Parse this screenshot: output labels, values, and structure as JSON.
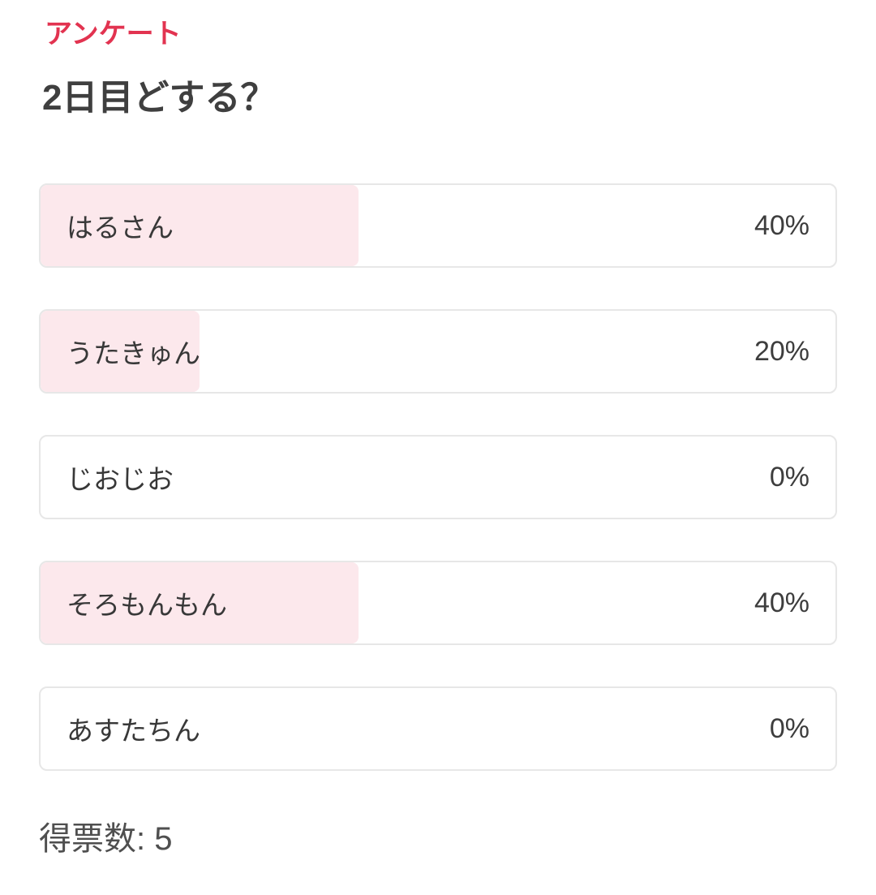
{
  "header": {
    "kicker": "アンケート",
    "kicker_color": "#e23350",
    "question": "2日目どする？"
  },
  "poll": {
    "options": [
      {
        "label": "はるさん",
        "percent": 40,
        "percent_label": "40%"
      },
      {
        "label": "うたきゅん",
        "percent": 20,
        "percent_label": "20%"
      },
      {
        "label": "じおじお",
        "percent": 0,
        "percent_label": "0%"
      },
      {
        "label": "そろもんもん",
        "percent": 40,
        "percent_label": "40%"
      },
      {
        "label": "あすたちん",
        "percent": 0,
        "percent_label": "0%"
      }
    ],
    "bar_fill_color": "#fce8ec",
    "bar_border_color": "#e7e7e7",
    "total_votes": 5,
    "total_text": "得票数: 5"
  },
  "chart_data": {
    "type": "bar",
    "orientation": "horizontal",
    "title": "2日目どする？",
    "categories": [
      "はるさん",
      "うたきゅん",
      "じおじお",
      "そろもんもん",
      "あすたちん"
    ],
    "values": [
      40,
      20,
      0,
      40,
      0
    ],
    "unit": "%",
    "total_votes": 5,
    "xlim": [
      0,
      100
    ],
    "legend": "none",
    "grid": false
  }
}
